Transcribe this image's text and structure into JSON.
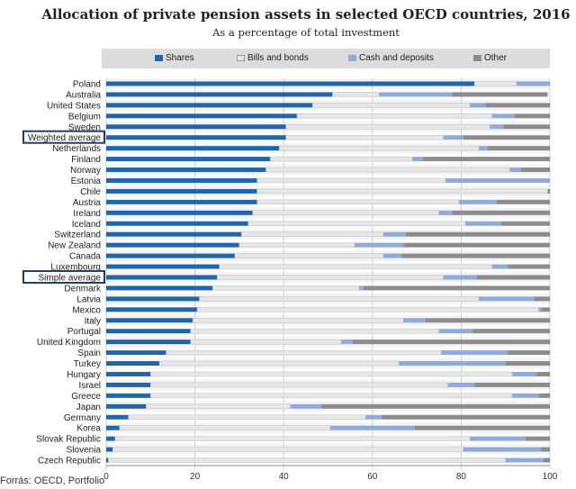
{
  "chart_data": {
    "type": "bar",
    "orientation": "horizontal",
    "stacked": true,
    "title": "Allocation of private pension assets in selected OECD countries, 2016",
    "subtitle": "As a percentage of total investment",
    "xlabel": "",
    "ylabel": "",
    "xlim": [
      0,
      100
    ],
    "xticks": [
      0,
      20,
      40,
      60,
      80,
      100
    ],
    "legend_position": "top",
    "highlighted": [
      "Weighted average",
      "Simple average"
    ],
    "categories": [
      "Poland",
      "Australia",
      "United States",
      "Belgium",
      "Sweden",
      "Weighted average",
      "Netherlands",
      "Finland",
      "Norway",
      "Estonia",
      "Chile",
      "Austria",
      "Ireland",
      "Iceland",
      "Switzerland",
      "New Zealand",
      "Canada",
      "Luxembourg",
      "Simple average",
      "Denmark",
      "Latvia",
      "Mexico",
      "Italy",
      "Portugal",
      "United Kingdom",
      "Spain",
      "Turkey",
      "Hungary",
      "Israel",
      "Greece",
      "Japan",
      "Germany",
      "Korea",
      "Slovak Republic",
      "Slovenia",
      "Czech Republic"
    ],
    "series": [
      {
        "name": "Shares",
        "color": "#2166ac",
        "values": [
          83,
          51,
          46.5,
          43,
          40.5,
          40.5,
          39,
          37,
          36,
          34,
          34,
          34,
          33,
          32,
          30.5,
          30,
          29,
          25.5,
          25,
          24,
          21,
          20.5,
          19.5,
          19,
          19,
          13.5,
          12,
          10,
          10,
          10,
          9,
          5,
          3,
          2,
          1.5,
          0.5
        ]
      },
      {
        "name": "Bills and bonds",
        "color": "#e6e6e6",
        "values": [
          9.5,
          10.5,
          35.5,
          44,
          46,
          35.5,
          45,
          32,
          55,
          42.5,
          65.5,
          45.5,
          42,
          49,
          32,
          26,
          33.5,
          61.5,
          51,
          33,
          63,
          77,
          47.5,
          56,
          34,
          62,
          54,
          81.5,
          67,
          81.5,
          32.5,
          53.5,
          47.5,
          80,
          79,
          89.5
        ]
      },
      {
        "name": "Cash and deposits",
        "color": "#8faadc",
        "values": [
          7.5,
          16.5,
          3.5,
          5,
          3,
          4.5,
          2,
          2.5,
          2.5,
          23.5,
          0,
          8.5,
          3,
          8,
          5,
          11,
          4,
          3.5,
          7.5,
          1,
          12.5,
          0.5,
          5,
          7.5,
          2.5,
          15,
          24,
          5.5,
          6,
          6,
          7,
          3.5,
          19,
          12.5,
          17.5,
          8.5
        ]
      },
      {
        "name": "Other",
        "color": "#8c8c8c",
        "values": [
          0,
          21.5,
          14.5,
          8,
          10.5,
          19.5,
          14,
          28.5,
          6.5,
          0,
          0.5,
          12,
          22,
          11,
          32.5,
          33,
          33.5,
          9.5,
          16.5,
          42,
          3.5,
          2,
          28,
          17.5,
          44.5,
          9.5,
          10,
          3,
          17,
          2.5,
          51.5,
          38,
          30.5,
          5.5,
          2,
          1.5
        ]
      }
    ]
  },
  "source_note": "Forrás: OECD, Portfolio"
}
